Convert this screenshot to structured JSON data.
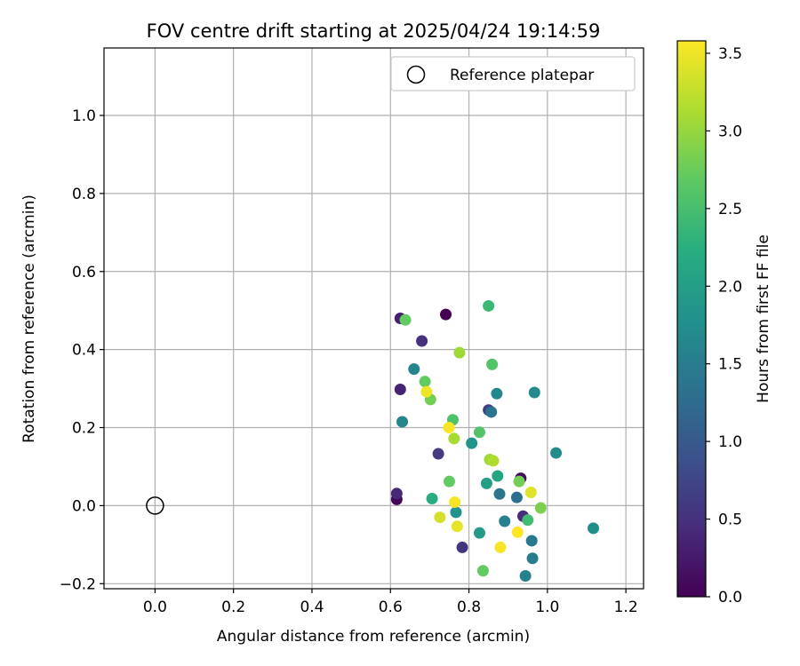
{
  "chart_data": {
    "type": "scatter",
    "title": "FOV centre drift starting at 2025/04/24 19:14:59",
    "xlabel": "Angular distance from reference (arcmin)",
    "ylabel": "Rotation from reference (arcmin)",
    "xlim": [
      -0.13,
      1.245
    ],
    "ylim": [
      -0.213,
      1.173
    ],
    "x_ticks": [
      0.0,
      0.2,
      0.4,
      0.6,
      0.8,
      1.0,
      1.2
    ],
    "x_tick_labels": [
      "0.0",
      "0.2",
      "0.4",
      "0.6",
      "0.8",
      "1.0",
      "1.2"
    ],
    "y_ticks": [
      -0.2,
      0.0,
      0.2,
      0.4,
      0.6,
      0.8,
      1.0
    ],
    "y_tick_labels": [
      "−0.2",
      "0.0",
      "0.2",
      "0.4",
      "0.6",
      "0.8",
      "1.0"
    ],
    "grid": true,
    "legend": {
      "placement": "top-right",
      "entries": [
        "Reference platepar"
      ]
    },
    "reference_point": {
      "x": 0.0,
      "y": 0.0,
      "label": "Reference platepar"
    },
    "colorbar": {
      "label": "Hours from first FF file",
      "min": 0.0,
      "max": 3.58,
      "ticks": [
        0.0,
        0.5,
        1.0,
        1.5,
        2.0,
        2.5,
        3.0,
        3.5
      ],
      "tick_labels": [
        "0.0",
        "0.5",
        "1.0",
        "1.5",
        "2.0",
        "2.5",
        "3.0",
        "3.5"
      ],
      "colormap": "viridis"
    },
    "points": [
      {
        "x": 0.741,
        "y": 0.49,
        "c": 0.0
      },
      {
        "x": 0.616,
        "y": 0.016,
        "c": 0.05
      },
      {
        "x": 0.932,
        "y": 0.07,
        "c": 0.1
      },
      {
        "x": 0.625,
        "y": 0.48,
        "c": 0.3
      },
      {
        "x": 0.625,
        "y": 0.298,
        "c": 0.35
      },
      {
        "x": 0.616,
        "y": 0.031,
        "c": 0.4
      },
      {
        "x": 0.938,
        "y": -0.027,
        "c": 0.45
      },
      {
        "x": 0.68,
        "y": 0.422,
        "c": 0.5
      },
      {
        "x": 0.783,
        "y": -0.107,
        "c": 0.55
      },
      {
        "x": 0.722,
        "y": 0.133,
        "c": 0.6
      },
      {
        "x": 0.85,
        "y": 0.245,
        "c": 0.65
      },
      {
        "x": 0.922,
        "y": 0.021,
        "c": 1.3
      },
      {
        "x": 0.857,
        "y": 0.24,
        "c": 1.35
      },
      {
        "x": 0.878,
        "y": 0.03,
        "c": 1.4
      },
      {
        "x": 0.96,
        "y": -0.09,
        "c": 1.45
      },
      {
        "x": 0.962,
        "y": -0.135,
        "c": 1.5
      },
      {
        "x": 0.944,
        "y": -0.18,
        "c": 1.55
      },
      {
        "x": 0.891,
        "y": -0.04,
        "c": 1.55
      },
      {
        "x": 0.66,
        "y": 0.35,
        "c": 1.6
      },
      {
        "x": 0.63,
        "y": 0.215,
        "c": 1.6
      },
      {
        "x": 0.871,
        "y": 0.287,
        "c": 1.65
      },
      {
        "x": 0.967,
        "y": 0.29,
        "c": 1.7
      },
      {
        "x": 1.022,
        "y": 0.135,
        "c": 1.7
      },
      {
        "x": 1.117,
        "y": -0.058,
        "c": 1.75
      },
      {
        "x": 0.767,
        "y": -0.017,
        "c": 1.8
      },
      {
        "x": 0.807,
        "y": 0.16,
        "c": 1.85
      },
      {
        "x": 0.827,
        "y": -0.07,
        "c": 1.95
      },
      {
        "x": 0.845,
        "y": 0.057,
        "c": 2.0
      },
      {
        "x": 0.873,
        "y": 0.076,
        "c": 2.1
      },
      {
        "x": 0.706,
        "y": 0.018,
        "c": 2.2
      },
      {
        "x": 0.95,
        "y": -0.037,
        "c": 2.45
      },
      {
        "x": 0.85,
        "y": 0.512,
        "c": 2.4
      },
      {
        "x": 0.759,
        "y": 0.22,
        "c": 2.55
      },
      {
        "x": 0.827,
        "y": 0.188,
        "c": 2.6
      },
      {
        "x": 0.859,
        "y": 0.362,
        "c": 2.6
      },
      {
        "x": 0.638,
        "y": 0.476,
        "c": 2.7
      },
      {
        "x": 0.688,
        "y": 0.318,
        "c": 2.7
      },
      {
        "x": 0.702,
        "y": 0.272,
        "c": 2.8
      },
      {
        "x": 0.75,
        "y": 0.062,
        "c": 2.7
      },
      {
        "x": 0.836,
        "y": -0.167,
        "c": 2.7
      },
      {
        "x": 0.928,
        "y": 0.062,
        "c": 2.8
      },
      {
        "x": 0.983,
        "y": -0.006,
        "c": 2.85
      },
      {
        "x": 0.776,
        "y": 0.392,
        "c": 3.05
      },
      {
        "x": 0.762,
        "y": 0.172,
        "c": 3.1
      },
      {
        "x": 0.853,
        "y": 0.118,
        "c": 3.05
      },
      {
        "x": 0.862,
        "y": 0.115,
        "c": 3.15
      },
      {
        "x": 0.726,
        "y": -0.03,
        "c": 3.35
      },
      {
        "x": 0.77,
        "y": -0.053,
        "c": 3.45
      },
      {
        "x": 0.958,
        "y": 0.034,
        "c": 3.4
      },
      {
        "x": 0.692,
        "y": 0.292,
        "c": 3.5
      },
      {
        "x": 0.749,
        "y": 0.2,
        "c": 3.55
      },
      {
        "x": 0.764,
        "y": 0.009,
        "c": 3.55
      },
      {
        "x": 0.88,
        "y": -0.107,
        "c": 3.55
      },
      {
        "x": 0.924,
        "y": -0.068,
        "c": 3.58
      }
    ]
  }
}
